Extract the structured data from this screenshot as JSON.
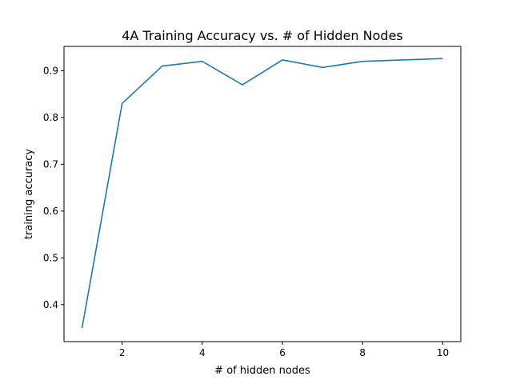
{
  "chart_data": {
    "type": "line",
    "title": "4A Training Accuracy vs. # of Hidden Nodes",
    "xlabel": "# of hidden nodes",
    "ylabel": "training accuracy",
    "xlim": [
      0.55,
      10.45
    ],
    "ylim": [
      0.321,
      0.952
    ],
    "x_ticks": [
      2,
      4,
      6,
      8,
      10
    ],
    "y_ticks": [
      0.4,
      0.5,
      0.6,
      0.7,
      0.8,
      0.9
    ],
    "grid": false,
    "series": [
      {
        "x": [
          1,
          2,
          3,
          4,
          5,
          6,
          7,
          8,
          9,
          10
        ],
        "values": [
          0.35,
          0.83,
          0.91,
          0.92,
          0.87,
          0.923,
          0.907,
          0.92,
          0.923,
          0.926
        ],
        "color": "#1f77b4"
      }
    ]
  }
}
